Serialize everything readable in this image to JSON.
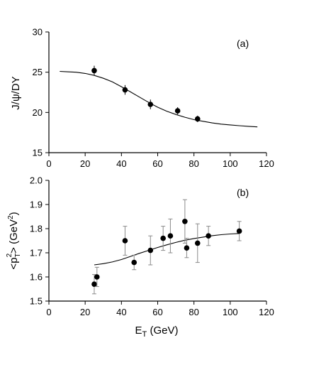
{
  "chart_data": [
    {
      "panel_label": "(a)",
      "type": "scatter",
      "xlabel": "",
      "ylabel": "J/ψ/DY",
      "xlim": [
        0,
        120
      ],
      "ylim": [
        15,
        30
      ],
      "xticks": [
        0,
        20,
        40,
        60,
        80,
        100,
        120
      ],
      "yticks": [
        15,
        20,
        25,
        30
      ],
      "grid": false,
      "points": [
        {
          "x": 25,
          "y": 25.2,
          "yerr": 0.6
        },
        {
          "x": 42,
          "y": 22.8,
          "yerr": 0.6
        },
        {
          "x": 56,
          "y": 21.0,
          "yerr": 0.6
        },
        {
          "x": 71,
          "y": 20.2,
          "yerr": 0.45
        },
        {
          "x": 82,
          "y": 19.2,
          "yerr": 0.4
        }
      ],
      "curve": {
        "x": [
          6,
          10,
          15,
          20,
          25,
          30,
          35,
          40,
          45,
          50,
          55,
          60,
          65,
          70,
          75,
          80,
          85,
          90,
          95,
          100,
          105,
          110,
          115
        ],
        "y": [
          25.1,
          25.05,
          25.0,
          24.85,
          24.6,
          24.25,
          23.8,
          23.2,
          22.55,
          21.9,
          21.25,
          20.65,
          20.15,
          19.75,
          19.4,
          19.1,
          18.9,
          18.7,
          18.55,
          18.45,
          18.35,
          18.27,
          18.2
        ]
      }
    },
    {
      "panel_label": "(b)",
      "type": "scatter",
      "xlabel": "E",
      "xlabel_sub": "T",
      "xlabel_unit": " (GeV)",
      "ylabel": "<p",
      "ylabel_sub": "T",
      "ylabel_sup": "2",
      "ylabel_unit": "> (GeV",
      "ylabel_unit_sup": "2",
      "ylabel_tail": ")",
      "xlim": [
        0,
        120
      ],
      "ylim": [
        1.5,
        2.0
      ],
      "xticks": [
        0,
        20,
        40,
        60,
        80,
        100,
        120
      ],
      "yticks": [
        "1.5",
        "1.6",
        "1.7",
        "1.8",
        "1.9",
        "2.0"
      ],
      "grid": false,
      "points": [
        {
          "x": 25,
          "y": 1.57,
          "yerr": 0.04
        },
        {
          "x": 26.5,
          "y": 1.6,
          "yerr": 0.04
        },
        {
          "x": 42,
          "y": 1.75,
          "yerr": 0.06
        },
        {
          "x": 47,
          "y": 1.66,
          "yerr": 0.03
        },
        {
          "x": 56,
          "y": 1.71,
          "yerr": 0.06
        },
        {
          "x": 63,
          "y": 1.76,
          "yerr": 0.05
        },
        {
          "x": 67,
          "y": 1.77,
          "yerr": 0.07
        },
        {
          "x": 75,
          "y": 1.83,
          "yerr": 0.09
        },
        {
          "x": 76,
          "y": 1.72,
          "yerr": 0.04
        },
        {
          "x": 82,
          "y": 1.74,
          "yerr": 0.08
        },
        {
          "x": 88,
          "y": 1.77,
          "yerr": 0.04
        },
        {
          "x": 105,
          "y": 1.79,
          "yerr": 0.04
        }
      ],
      "curve": {
        "x": [
          25,
          30,
          35,
          40,
          45,
          50,
          55,
          60,
          65,
          70,
          75,
          80,
          85,
          90,
          95,
          100,
          105
        ],
        "y": [
          1.65,
          1.655,
          1.662,
          1.672,
          1.685,
          1.698,
          1.71,
          1.722,
          1.733,
          1.743,
          1.752,
          1.759,
          1.765,
          1.771,
          1.775,
          1.778,
          1.78
        ]
      }
    }
  ]
}
